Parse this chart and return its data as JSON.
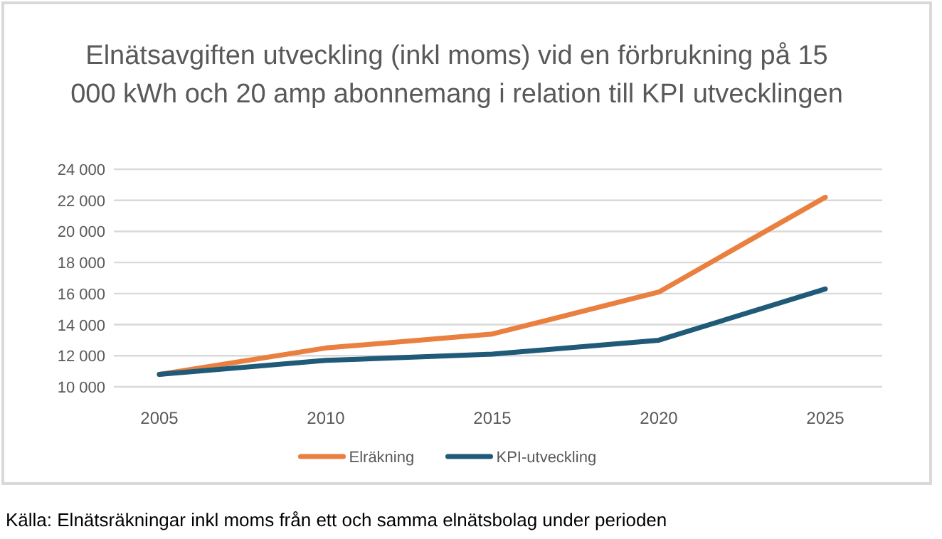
{
  "chart_data": {
    "type": "line",
    "title": "Elnätsavgiften utveckling (inkl moms) vid en förbrukning på 15 000 kWh och 20 amp abonnemang i relation till KPI utvecklingen",
    "categories": [
      "2005",
      "2010",
      "2015",
      "2020",
      "2025"
    ],
    "series": [
      {
        "name": "Elräkning",
        "color": "#e9803f",
        "values": [
          10800,
          12500,
          13400,
          16100,
          22200
        ]
      },
      {
        "name": "KPI-utveckling",
        "color": "#1f5a78",
        "values": [
          10800,
          11700,
          12100,
          13000,
          16300
        ]
      }
    ],
    "ylim": [
      10000,
      24000
    ],
    "yticks": [
      {
        "value": 10000,
        "label": "10 000"
      },
      {
        "value": 12000,
        "label": "12 000"
      },
      {
        "value": 14000,
        "label": "14 000"
      },
      {
        "value": 16000,
        "label": "16 000"
      },
      {
        "value": 18000,
        "label": "18 000"
      },
      {
        "value": 20000,
        "label": "20 000"
      },
      {
        "value": 22000,
        "label": "22 000"
      },
      {
        "value": 24000,
        "label": "24 000"
      }
    ],
    "grid": "y",
    "legend": "bottom",
    "line_style": "solid",
    "annotations": [
      "Källa: Elnätsräkningar inkl moms från ett och samma elnätsbolag under perioden"
    ]
  }
}
